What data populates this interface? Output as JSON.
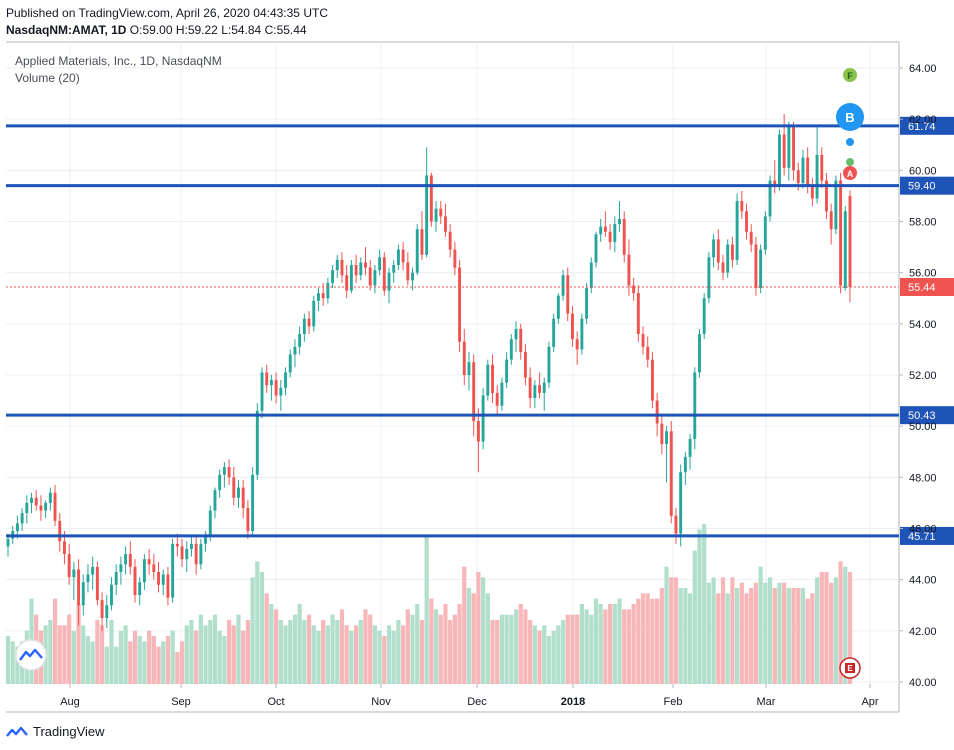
{
  "header": {
    "published": "Published on TradingView.com, April 26, 2020 04:43:35 UTC",
    "symbol": "NasdaqNM:AMAT, 1D",
    "ohlc_text": "O:59.00 H:59.22 L:54.84 C:55.44"
  },
  "legend": {
    "title": "Applied Materials, Inc., 1D, NasdaqNM",
    "volume": "Volume (20)"
  },
  "footer": {
    "brand": "TradingView"
  },
  "colors": {
    "up": "#26a69a",
    "down": "#ef5350",
    "vol_up": "#b2dfcc",
    "vol_down": "#f7b7b8",
    "level_line": "#1e53b8",
    "grid": "#eceff3",
    "price_label_bg": "#1e53b8",
    "last_price": "#ef5350"
  },
  "markers": {
    "f": "F",
    "b": "B",
    "a": "A",
    "e": "E"
  },
  "chart_data": {
    "type": "candlestick",
    "yaxis": {
      "min": 40,
      "max": 64,
      "ticks": [
        "64.00",
        "62.00",
        "60.00",
        "58.00",
        "56.00",
        "54.00",
        "52.00",
        "50.00",
        "48.00",
        "46.00",
        "44.00",
        "42.00",
        "40.00"
      ]
    },
    "xaxis": {
      "ticks": [
        "Aug",
        "Sep",
        "Oct",
        "Nov",
        "Dec",
        "2018",
        "Feb",
        "Mar",
        "Apr"
      ]
    },
    "levels": [
      {
        "value": 61.74,
        "label": "61.74"
      },
      {
        "value": 59.4,
        "label": "59.40"
      },
      {
        "value": 50.43,
        "label": "50.43"
      },
      {
        "value": 45.71,
        "label": "45.71"
      }
    ],
    "last_price": {
      "value": 55.44,
      "label": "55.44"
    },
    "candles": [
      [
        45.3,
        45.8,
        44.9,
        45.6
      ],
      [
        45.6,
        46.1,
        45.4,
        45.9
      ],
      [
        45.9,
        46.5,
        45.6,
        46.2
      ],
      [
        46.2,
        46.8,
        45.9,
        46.6
      ],
      [
        46.6,
        47.3,
        46.2,
        47.0
      ],
      [
        47.0,
        47.4,
        46.6,
        47.2
      ],
      [
        47.2,
        47.5,
        46.7,
        46.9
      ],
      [
        46.9,
        47.3,
        46.3,
        46.7
      ],
      [
        46.7,
        47.1,
        46.4,
        47.0
      ],
      [
        47.0,
        47.6,
        46.7,
        47.4
      ],
      [
        47.4,
        47.7,
        46.1,
        46.3
      ],
      [
        46.3,
        46.6,
        45.1,
        45.5
      ],
      [
        45.5,
        45.9,
        44.6,
        45.0
      ],
      [
        45.0,
        45.4,
        43.8,
        44.1
      ],
      [
        44.1,
        44.7,
        43.2,
        44.4
      ],
      [
        44.4,
        44.8,
        42.2,
        43.0
      ],
      [
        43.0,
        44.2,
        42.6,
        43.9
      ],
      [
        43.9,
        44.6,
        43.5,
        44.2
      ],
      [
        44.2,
        44.9,
        43.6,
        44.5
      ],
      [
        44.5,
        44.7,
        43.0,
        43.2
      ],
      [
        43.2,
        43.5,
        42.0,
        42.5
      ],
      [
        42.5,
        43.4,
        42.1,
        43.0
      ],
      [
        43.0,
        44.1,
        42.8,
        43.8
      ],
      [
        43.8,
        44.6,
        43.4,
        44.3
      ],
      [
        44.3,
        44.9,
        43.8,
        44.6
      ],
      [
        44.6,
        45.3,
        44.2,
        45.0
      ],
      [
        45.0,
        45.5,
        44.2,
        44.5
      ],
      [
        44.5,
        44.8,
        43.1,
        43.4
      ],
      [
        43.4,
        44.1,
        43.0,
        43.9
      ],
      [
        43.9,
        45.0,
        43.6,
        44.8
      ],
      [
        44.8,
        45.2,
        44.2,
        44.6
      ],
      [
        44.6,
        45.0,
        44.0,
        44.3
      ],
      [
        44.3,
        44.7,
        43.5,
        43.8
      ],
      [
        43.8,
        44.4,
        43.4,
        44.2
      ],
      [
        44.2,
        44.5,
        43.0,
        43.3
      ],
      [
        43.3,
        45.6,
        43.1,
        45.4
      ],
      [
        45.4,
        45.8,
        44.9,
        45.3
      ],
      [
        45.3,
        45.6,
        44.5,
        44.8
      ],
      [
        44.8,
        45.5,
        44.3,
        45.2
      ],
      [
        45.2,
        45.7,
        44.9,
        45.4
      ],
      [
        45.4,
        45.7,
        44.2,
        44.6
      ],
      [
        44.6,
        45.6,
        44.4,
        45.4
      ],
      [
        45.4,
        45.9,
        45.1,
        45.7
      ],
      [
        45.7,
        46.9,
        45.5,
        46.7
      ],
      [
        46.7,
        47.6,
        46.4,
        47.5
      ],
      [
        47.5,
        48.3,
        47.2,
        48.1
      ],
      [
        48.1,
        48.6,
        47.6,
        48.4
      ],
      [
        48.4,
        48.7,
        47.7,
        48.0
      ],
      [
        48.0,
        48.4,
        46.9,
        47.2
      ],
      [
        47.2,
        47.9,
        46.8,
        47.6
      ],
      [
        47.6,
        47.9,
        46.4,
        46.8
      ],
      [
        46.8,
        47.1,
        45.6,
        45.9
      ],
      [
        45.9,
        48.4,
        45.7,
        48.1
      ],
      [
        48.1,
        50.9,
        47.9,
        50.6
      ],
      [
        50.6,
        52.3,
        50.3,
        52.1
      ],
      [
        52.1,
        52.4,
        51.3,
        51.6
      ],
      [
        51.6,
        52.0,
        51.0,
        51.8
      ],
      [
        51.8,
        52.1,
        50.9,
        51.2
      ],
      [
        51.2,
        51.8,
        50.6,
        51.5
      ],
      [
        51.5,
        52.3,
        51.2,
        52.1
      ],
      [
        52.1,
        53.0,
        51.9,
        52.8
      ],
      [
        52.8,
        53.4,
        52.3,
        53.1
      ],
      [
        53.1,
        53.9,
        52.8,
        53.6
      ],
      [
        53.6,
        54.4,
        53.3,
        54.2
      ],
      [
        54.2,
        54.5,
        53.6,
        53.9
      ],
      [
        53.9,
        55.1,
        53.7,
        54.9
      ],
      [
        54.9,
        55.4,
        54.5,
        55.2
      ],
      [
        55.2,
        55.6,
        54.7,
        55.0
      ],
      [
        55.0,
        55.8,
        54.8,
        55.6
      ],
      [
        55.6,
        56.3,
        55.4,
        56.1
      ],
      [
        56.1,
        56.7,
        55.8,
        56.5
      ],
      [
        56.5,
        56.8,
        55.6,
        55.9
      ],
      [
        55.9,
        56.3,
        55.0,
        55.3
      ],
      [
        55.3,
        56.5,
        55.2,
        56.3
      ],
      [
        56.3,
        56.7,
        55.6,
        55.9
      ],
      [
        55.9,
        56.6,
        55.7,
        56.4
      ],
      [
        56.4,
        57.0,
        55.9,
        56.2
      ],
      [
        56.2,
        56.5,
        55.3,
        55.5
      ],
      [
        55.5,
        56.3,
        55.2,
        56.1
      ],
      [
        56.1,
        56.9,
        55.9,
        56.6
      ],
      [
        56.6,
        56.8,
        55.1,
        55.3
      ],
      [
        55.3,
        56.2,
        54.8,
        56.0
      ],
      [
        56.0,
        56.5,
        55.6,
        56.3
      ],
      [
        56.3,
        57.1,
        56.1,
        56.9
      ],
      [
        56.9,
        57.2,
        56.1,
        56.4
      ],
      [
        56.4,
        56.8,
        55.5,
        55.7
      ],
      [
        55.7,
        56.2,
        55.3,
        56.0
      ],
      [
        56.0,
        57.9,
        55.9,
        57.7
      ],
      [
        57.7,
        58.4,
        56.5,
        56.7
      ],
      [
        56.7,
        60.9,
        56.6,
        59.8
      ],
      [
        59.8,
        59.9,
        57.8,
        58.0
      ],
      [
        58.0,
        58.8,
        57.6,
        58.5
      ],
      [
        58.5,
        58.8,
        57.9,
        58.2
      ],
      [
        58.2,
        58.7,
        57.4,
        57.6
      ],
      [
        57.6,
        57.9,
        56.6,
        56.9
      ],
      [
        56.9,
        57.2,
        55.9,
        56.2
      ],
      [
        56.2,
        56.5,
        52.9,
        53.3
      ],
      [
        53.3,
        53.8,
        51.6,
        52.0
      ],
      [
        52.0,
        52.9,
        51.4,
        52.5
      ],
      [
        52.5,
        52.8,
        49.6,
        50.2
      ],
      [
        50.2,
        50.7,
        48.2,
        49.4
      ],
      [
        49.4,
        51.5,
        49.1,
        51.2
      ],
      [
        51.2,
        52.6,
        51.0,
        52.4
      ],
      [
        52.4,
        52.8,
        50.9,
        51.3
      ],
      [
        51.3,
        51.6,
        50.4,
        50.8
      ],
      [
        50.8,
        51.9,
        50.6,
        51.7
      ],
      [
        51.7,
        52.9,
        51.5,
        52.6
      ],
      [
        52.6,
        53.6,
        52.4,
        53.4
      ],
      [
        53.4,
        54.1,
        52.9,
        53.8
      ],
      [
        53.8,
        54.0,
        52.6,
        52.9
      ],
      [
        52.9,
        53.2,
        51.6,
        51.9
      ],
      [
        51.9,
        52.3,
        50.7,
        51.1
      ],
      [
        51.1,
        51.8,
        50.7,
        51.6
      ],
      [
        51.6,
        52.1,
        51.1,
        51.3
      ],
      [
        51.3,
        51.9,
        50.6,
        51.7
      ],
      [
        51.7,
        53.3,
        51.5,
        53.1
      ],
      [
        53.1,
        54.4,
        52.9,
        54.2
      ],
      [
        54.2,
        55.2,
        54.0,
        55.1
      ],
      [
        55.1,
        56.1,
        54.9,
        55.9
      ],
      [
        55.9,
        56.2,
        54.1,
        54.4
      ],
      [
        54.4,
        54.7,
        53.1,
        53.4
      ],
      [
        53.4,
        53.7,
        52.4,
        53.0
      ],
      [
        53.0,
        54.4,
        52.8,
        54.2
      ],
      [
        54.2,
        55.6,
        54.0,
        55.4
      ],
      [
        55.4,
        56.6,
        55.2,
        56.4
      ],
      [
        56.4,
        57.6,
        56.2,
        57.5
      ],
      [
        57.5,
        58.1,
        57.2,
        57.8
      ],
      [
        57.8,
        58.4,
        57.4,
        57.6
      ],
      [
        57.6,
        57.9,
        56.9,
        57.2
      ],
      [
        57.2,
        58.2,
        56.8,
        57.9
      ],
      [
        57.9,
        58.8,
        57.6,
        58.1
      ],
      [
        58.1,
        58.4,
        56.4,
        56.7
      ],
      [
        56.7,
        57.3,
        55.1,
        55.5
      ],
      [
        55.5,
        55.8,
        54.9,
        55.2
      ],
      [
        55.2,
        55.5,
        53.3,
        53.6
      ],
      [
        53.6,
        53.9,
        52.8,
        53.1
      ],
      [
        53.1,
        53.5,
        52.3,
        52.6
      ],
      [
        52.6,
        52.9,
        50.7,
        51.0
      ],
      [
        51.0,
        51.3,
        49.6,
        50.1
      ],
      [
        50.1,
        50.4,
        48.9,
        49.3
      ],
      [
        49.3,
        50.0,
        47.8,
        49.8
      ],
      [
        49.8,
        50.2,
        46.2,
        46.5
      ],
      [
        46.5,
        46.8,
        45.4,
        45.8
      ],
      [
        45.8,
        48.5,
        45.3,
        48.2
      ],
      [
        48.2,
        49.0,
        47.7,
        48.8
      ],
      [
        48.8,
        49.7,
        48.3,
        49.5
      ],
      [
        49.5,
        52.3,
        49.1,
        52.1
      ],
      [
        52.1,
        53.8,
        51.9,
        53.6
      ],
      [
        53.6,
        55.2,
        53.4,
        55.0
      ],
      [
        55.0,
        56.8,
        54.8,
        56.6
      ],
      [
        56.6,
        57.5,
        56.2,
        57.3
      ],
      [
        57.3,
        57.7,
        56.1,
        56.4
      ],
      [
        56.4,
        56.7,
        55.7,
        56.0
      ],
      [
        56.0,
        57.3,
        55.8,
        57.1
      ],
      [
        57.1,
        57.4,
        56.2,
        56.5
      ],
      [
        56.5,
        59.1,
        56.3,
        58.8
      ],
      [
        58.8,
        59.2,
        58.1,
        58.4
      ],
      [
        58.4,
        58.7,
        57.3,
        57.6
      ],
      [
        57.6,
        57.9,
        56.8,
        57.1
      ],
      [
        57.1,
        57.4,
        55.1,
        55.4
      ],
      [
        55.4,
        57.1,
        55.2,
        56.9
      ],
      [
        56.9,
        58.4,
        56.7,
        58.2
      ],
      [
        58.2,
        59.8,
        58.0,
        59.6
      ],
      [
        59.6,
        60.4,
        59.1,
        59.4
      ],
      [
        59.4,
        61.6,
        59.2,
        61.4
      ],
      [
        61.4,
        62.2,
        59.8,
        60.1
      ],
      [
        60.1,
        61.9,
        59.6,
        61.7
      ],
      [
        61.7,
        61.9,
        59.6,
        60.0
      ],
      [
        60.0,
        60.3,
        59.2,
        59.5
      ],
      [
        59.5,
        60.8,
        59.3,
        60.5
      ],
      [
        60.5,
        60.9,
        59.1,
        59.4
      ],
      [
        59.4,
        59.7,
        58.6,
        58.9
      ],
      [
        58.9,
        61.7,
        58.7,
        60.6
      ],
      [
        60.6,
        60.9,
        59.3,
        59.6
      ],
      [
        59.6,
        59.9,
        58.1,
        58.4
      ],
      [
        58.4,
        58.7,
        57.1,
        57.7
      ],
      [
        57.7,
        59.8,
        57.5,
        59.6
      ],
      [
        59.6,
        59.9,
        55.2,
        55.5
      ],
      [
        55.4,
        58.6,
        55.3,
        58.4
      ],
      [
        59.0,
        59.22,
        54.84,
        55.44
      ]
    ],
    "volumes": [
      9,
      8,
      7,
      8,
      10,
      16,
      13,
      10,
      11,
      12,
      16,
      11,
      11,
      13,
      10,
      15,
      11,
      9,
      8,
      12,
      11,
      7,
      12,
      7,
      10,
      11,
      8,
      10,
      9,
      8,
      10,
      9,
      7,
      8,
      9,
      10,
      6,
      8,
      11,
      12,
      10,
      13,
      11,
      12,
      13,
      10,
      9,
      12,
      11,
      13,
      10,
      12,
      20,
      23,
      21,
      17,
      15,
      14,
      12,
      11,
      12,
      13,
      15,
      12,
      13,
      11,
      10,
      12,
      11,
      13,
      12,
      14,
      11,
      10,
      11,
      12,
      14,
      13,
      11,
      10,
      9,
      11,
      10,
      12,
      11,
      14,
      13,
      15,
      12,
      28,
      16,
      14,
      13,
      15,
      12,
      13,
      15,
      22,
      18,
      17,
      21,
      20,
      17,
      12,
      12,
      13,
      13,
      13,
      14,
      15,
      14,
      12,
      11,
      10,
      11,
      9,
      10,
      11,
      12,
      13,
      13,
      13,
      15,
      14,
      13,
      16,
      15,
      14,
      15,
      15,
      16,
      14,
      14,
      15,
      16,
      17,
      17,
      16,
      16,
      18,
      22,
      20,
      20,
      18,
      18,
      17,
      25,
      29,
      30,
      19,
      20,
      17,
      20,
      17,
      20,
      18,
      19,
      17,
      18,
      19,
      22,
      19,
      20,
      18,
      19,
      19,
      18,
      18,
      18,
      18,
      16,
      17,
      20,
      21,
      21,
      19,
      20,
      23,
      22,
      21
    ]
  }
}
